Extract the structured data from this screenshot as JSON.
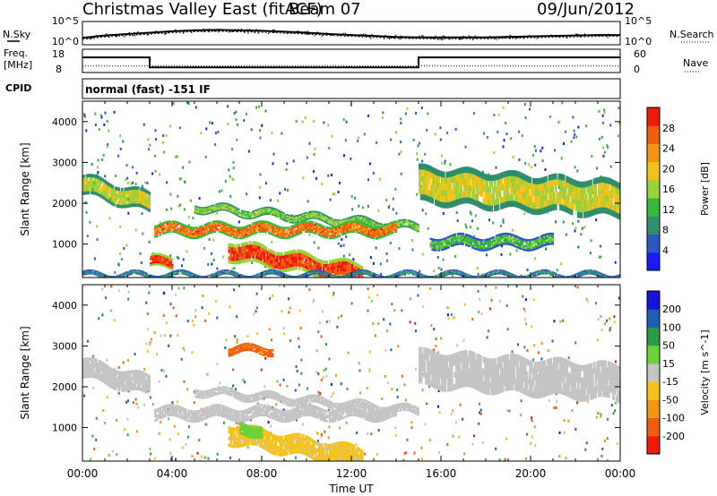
{
  "header": {
    "title": "Christmas Valley East (fitACF)",
    "beam": "Beam 07",
    "date": "09/Jun/2012"
  },
  "noise_panel": {
    "left_label": "N.Sky",
    "left_ticks": [
      "10^5",
      "10^0"
    ],
    "right_ticks": [
      "10^5",
      "10^0"
    ],
    "right_label": "N.Search"
  },
  "freq_panel": {
    "left_label_1": "Freq.",
    "left_label_2": "[MHz]",
    "left_ticks": [
      "18",
      "8"
    ],
    "right_ticks": [
      "60",
      "0"
    ],
    "right_label": "Nave"
  },
  "cpid_panel": {
    "label": "CPID",
    "value": "normal (fast) -151 IF"
  },
  "time_axis": {
    "ticks": [
      "00:00",
      "04:00",
      "08:00",
      "12:00",
      "16:00",
      "20:00",
      "00:00"
    ],
    "label": "Time UT"
  },
  "colors": {
    "power_scale": [
      "#1a1aff",
      "#2a56c8",
      "#2f8f6b",
      "#38b93a",
      "#9bd23b",
      "#f2c21a",
      "#f59612",
      "#f25c0f",
      "#f01a0a"
    ],
    "velocity_scale": [
      "#1414d8",
      "#1e5fb4",
      "#2e9b49",
      "#6cd23a",
      "#c4c4c4",
      "#f5c21a",
      "#f59612",
      "#f25c0f",
      "#f01a0a"
    ]
  },
  "chart_data": [
    {
      "type": "line",
      "title": "N.Sky / N.Search",
      "x": [
        0,
        1,
        2,
        3,
        4,
        5,
        6,
        7,
        8,
        9,
        10,
        11,
        12,
        13,
        14,
        15,
        16,
        17,
        18,
        19,
        20,
        21,
        22,
        23,
        24
      ],
      "series": [
        {
          "values": [
            1.5,
            2.0,
            2.3,
            2.6,
            2.9,
            3.1,
            3.2,
            3.1,
            3.0,
            2.8,
            2.6,
            2.3,
            2.1,
            1.9,
            1.7,
            1.6,
            1.6,
            1.6,
            1.6,
            1.7,
            1.8,
            1.9,
            2.0,
            2.1,
            2.1
          ]
        },
        {
          "values": [
            1.2,
            1.7,
            2.0,
            2.3,
            2.6,
            2.8,
            2.9,
            2.8,
            2.7,
            2.5,
            2.3,
            2.0,
            1.8,
            1.6,
            1.4,
            1.3,
            1.3,
            1.3,
            1.3,
            1.4,
            1.5,
            1.6,
            1.7,
            1.8,
            1.8
          ]
        }
      ],
      "ylim": [
        0,
        5
      ],
      "ylabel": "N.Sky"
    },
    {
      "type": "line",
      "title": "Freq. / Nave",
      "x": [
        0,
        3,
        3,
        15,
        15,
        24
      ],
      "series": [
        {
          "name": "Freq.",
          "values": [
            14.5,
            14.5,
            10.2,
            10.2,
            14.5,
            14.5
          ]
        },
        {
          "name": "Nave",
          "values": [
            17,
            17,
            17,
            17,
            17,
            17
          ]
        }
      ],
      "ylim": [
        8,
        18
      ],
      "ylabel": "Freq. [MHz]"
    },
    {
      "type": "heatmap",
      "xlabel": "Time UT",
      "ylabel": "Slant Range [km]",
      "xlim": [
        0,
        24
      ],
      "ylim": [
        180,
        4500
      ],
      "yticks": [
        "1000",
        "2000",
        "3000",
        "4000"
      ],
      "colorbar": {
        "label": "Power [dB]",
        "ticks": [
          "4",
          "8",
          "12",
          "16",
          "20",
          "24",
          "28"
        ],
        "range": [
          0,
          30
        ]
      },
      "bands": [
        {
          "t0": 0.0,
          "t1": 3.0,
          "r0": 2200,
          "r1": 2700,
          "slope": -150,
          "level": 16
        },
        {
          "t0": 5.0,
          "t1": 15.0,
          "r0": 1800,
          "r1": 2000,
          "slope": -50,
          "level": 14
        },
        {
          "t0": 3.2,
          "t1": 14.0,
          "r0": 1200,
          "r1": 1500,
          "slope": 0,
          "level": 24
        },
        {
          "t0": 6.5,
          "t1": 12.5,
          "r0": 600,
          "r1": 1100,
          "slope": -100,
          "level": 27
        },
        {
          "t0": 3.0,
          "t1": 4.0,
          "r0": 400,
          "r1": 700,
          "slope": 0,
          "level": 26
        },
        {
          "t0": 15.0,
          "t1": 24.0,
          "r0": 2000,
          "r1": 2900,
          "slope": -40,
          "level": 17
        },
        {
          "t0": 15.5,
          "t1": 21.0,
          "r0": 900,
          "r1": 1200,
          "slope": 0,
          "level": 12
        },
        {
          "t0": 0.0,
          "t1": 24.0,
          "r0": 180,
          "r1": 300,
          "slope": 0,
          "level": 8
        }
      ]
    },
    {
      "type": "heatmap",
      "xlabel": "Time UT",
      "ylabel": "Slant Range [km]",
      "xlim": [
        0,
        24
      ],
      "ylim": [
        180,
        4500
      ],
      "yticks": [
        "1000",
        "2000",
        "3000",
        "4000"
      ],
      "colorbar": {
        "label": "Velocity [m s^-1]",
        "ticks": [
          "200",
          "100",
          "50",
          "15",
          "-15",
          "-50",
          "-100",
          "-200"
        ],
        "range": [
          -250,
          250
        ]
      },
      "bands": [
        {
          "t0": 0.0,
          "t1": 3.0,
          "r0": 2200,
          "r1": 2700,
          "slope": -150,
          "level": 0
        },
        {
          "t0": 5.0,
          "t1": 15.0,
          "r0": 1800,
          "r1": 2000,
          "slope": -50,
          "level": 0
        },
        {
          "t0": 3.2,
          "t1": 14.0,
          "r0": 1200,
          "r1": 1500,
          "slope": 0,
          "level": 0
        },
        {
          "t0": 6.5,
          "t1": 12.5,
          "r0": 600,
          "r1": 1100,
          "slope": -100,
          "level": -40
        },
        {
          "t0": 6.5,
          "t1": 8.5,
          "r0": 2800,
          "r1": 3000,
          "slope": 0,
          "level": -150
        },
        {
          "t0": 15.0,
          "t1": 24.0,
          "r0": 2000,
          "r1": 2900,
          "slope": -40,
          "level": 0
        },
        {
          "t0": 7.0,
          "t1": 8.0,
          "r0": 800,
          "r1": 1100,
          "slope": 0,
          "level": 60
        }
      ]
    }
  ]
}
